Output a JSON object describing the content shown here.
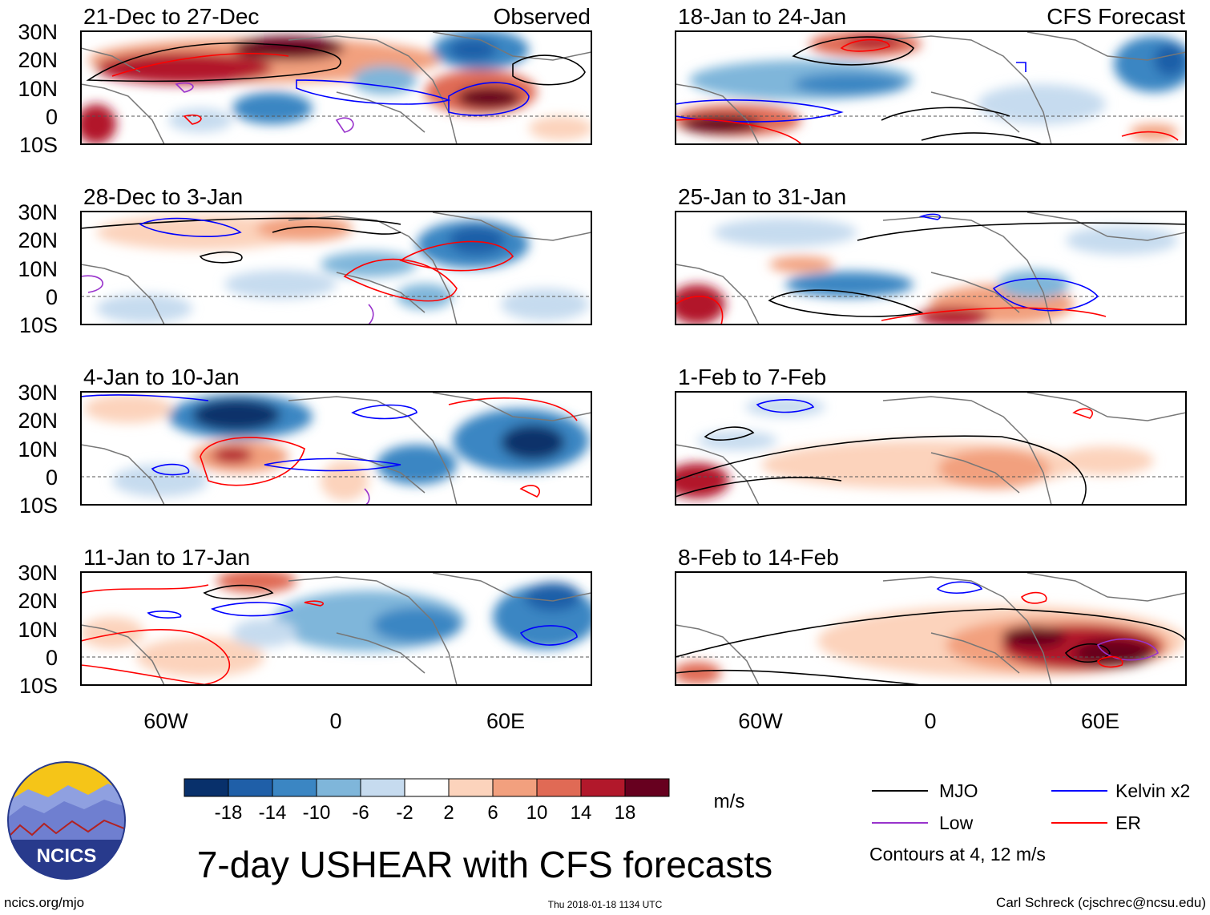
{
  "colors": {
    "scale": [
      "#08306b",
      "#1f5fa8",
      "#3b86c3",
      "#7fb6da",
      "#c6dbef",
      "#ffffff",
      "#fcd3bc",
      "#f2a07e",
      "#e06a55",
      "#b2182b",
      "#67001f"
    ],
    "mjo": "#000000",
    "kelvin": "#0000ff",
    "low": "#9933cc",
    "er": "#ff0000",
    "land": "#777777",
    "logo_sun": "#f5c518",
    "logo_sky": "#283a8c",
    "logo_mountain": "#6f7fd0"
  },
  "lat_labels": [
    "30N",
    "20N",
    "10N",
    "0",
    "10S"
  ],
  "lon_labels": [
    "60W",
    "0",
    "60E"
  ],
  "panels": {
    "left": [
      {
        "title": "21-Dec to 27-Dec",
        "tag": "Observed"
      },
      {
        "title": "28-Dec to 3-Jan",
        "tag": ""
      },
      {
        "title": "4-Jan to 10-Jan",
        "tag": ""
      },
      {
        "title": "11-Jan to 17-Jan",
        "tag": ""
      }
    ],
    "right": [
      {
        "title": "18-Jan to 24-Jan",
        "tag": "CFS Forecast"
      },
      {
        "title": "25-Jan to 31-Jan",
        "tag": ""
      },
      {
        "title": "1-Feb to 7-Feb",
        "tag": ""
      },
      {
        "title": "8-Feb to 14-Feb",
        "tag": ""
      }
    ]
  },
  "colorbar": {
    "ticks": [
      "-18",
      "-14",
      "-10",
      "-6",
      "-2",
      "2",
      "6",
      "10",
      "14",
      "18"
    ],
    "units": "m/s"
  },
  "legend": {
    "items": [
      {
        "label": "MJO",
        "color_key": "mjo"
      },
      {
        "label": "Kelvin x2",
        "color_key": "kelvin"
      },
      {
        "label": "Low",
        "color_key": "low"
      },
      {
        "label": "ER",
        "color_key": "er"
      }
    ],
    "note": "Contours at 4, 12 m/s"
  },
  "logo_text": "NCICS",
  "main_title": "7-day USHEAR with CFS forecasts",
  "footer": {
    "website": "ncics.org/mjo",
    "timestamp": "Thu 2018-01-18 1134 UTC",
    "author": "Carl Schreck (cjschrec@ncsu.edu)"
  }
}
